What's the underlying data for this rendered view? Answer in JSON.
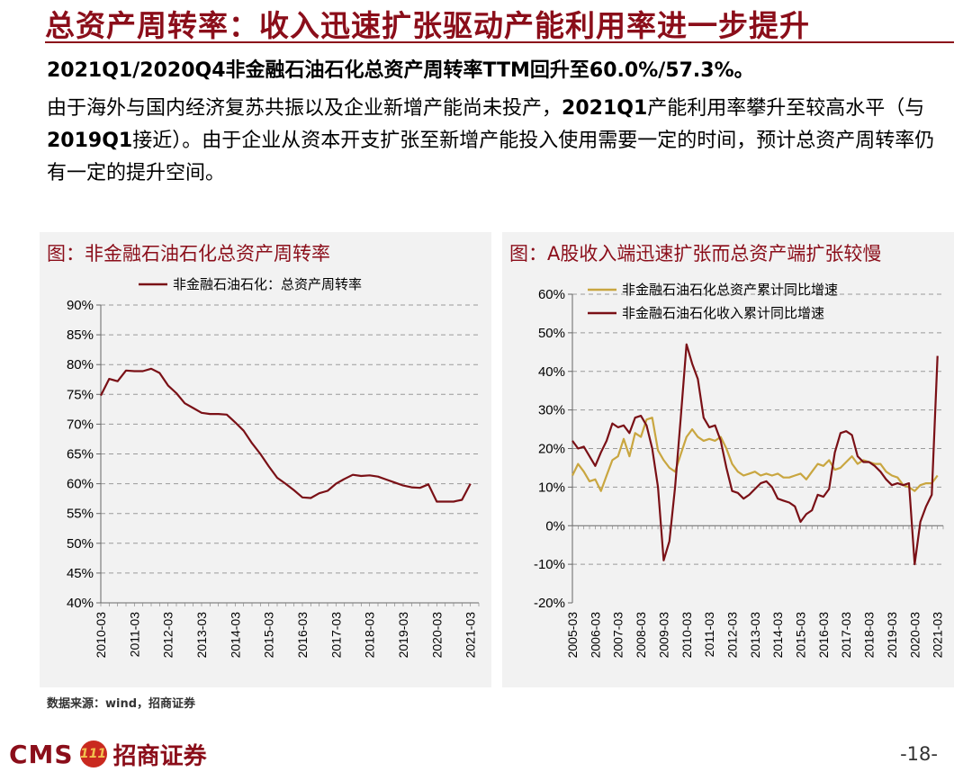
{
  "header": {
    "title": "总资产周转率：收入迅速扩张驱动产能利用率进一步提升",
    "headline": "2021Q1/2020Q4非金融石油石化总资产周转率TTM回升至60.0%/57.3%。"
  },
  "body": {
    "seg1": "由于海外与国内经济复苏共振以及企业新增产能尚未投产，",
    "seg2": "2021Q1",
    "seg3": "产能利用率攀升至较高水平（与",
    "seg4": "2019Q1",
    "seg5": "接近）。由于企业从资本开支扩张至新增产能投入使用需要一定的时间，预计总资产周转率仍有一定的提升空间。"
  },
  "left_panel": {
    "title": "图：非金融石油石化总资产周转率"
  },
  "right_panel": {
    "title": "图：A股收入端迅速扩张而总资产端扩张较慢"
  },
  "source": "数据来源：wind，招商证券",
  "footer": {
    "logo_text": "CMS",
    "logo_badge": "111",
    "logo_cn": "招商证券",
    "page": "-18-"
  },
  "colors": {
    "accent": "#8B0E1A",
    "series_gold": "#C9A640",
    "series_dark": "#7A1016"
  },
  "chart_data": [
    {
      "type": "line",
      "legend_position": "top-center",
      "ylim": [
        40,
        90
      ],
      "yticks": [
        "40%",
        "45%",
        "50%",
        "55%",
        "60%",
        "65%",
        "70%",
        "75%",
        "80%",
        "85%",
        "90%"
      ],
      "xlim": [
        2010.0,
        2021.25
      ],
      "xticks": [
        "2010-03",
        "2011-03",
        "2012-03",
        "2013-03",
        "2014-03",
        "2015-03",
        "2016-03",
        "2017-03",
        "2018-03",
        "2019-03",
        "2020-03",
        "2021-03"
      ],
      "grid": "horizontal dashed",
      "series": [
        {
          "name": "非金融石油石化：总资产周转率",
          "x": [
            2010.0,
            2010.25,
            2010.5,
            2010.75,
            2011.0,
            2011.25,
            2011.5,
            2011.75,
            2012.0,
            2012.25,
            2012.5,
            2012.75,
            2013.0,
            2013.25,
            2013.5,
            2013.75,
            2014.0,
            2014.25,
            2014.5,
            2014.75,
            2015.0,
            2015.25,
            2015.5,
            2015.75,
            2016.0,
            2016.25,
            2016.5,
            2016.75,
            2017.0,
            2017.25,
            2017.5,
            2017.75,
            2018.0,
            2018.25,
            2018.5,
            2018.75,
            2019.0,
            2019.25,
            2019.5,
            2019.75,
            2020.0,
            2020.25,
            2020.5,
            2020.75,
            2021.0
          ],
          "y": [
            74.8,
            77.6,
            77.2,
            79.0,
            78.9,
            78.9,
            79.3,
            78.6,
            76.5,
            75.2,
            73.5,
            72.7,
            71.9,
            71.7,
            71.7,
            71.6,
            70.3,
            68.9,
            66.8,
            65.0,
            62.9,
            61.0,
            60.0,
            58.9,
            57.7,
            57.6,
            58.4,
            58.8,
            60.0,
            60.8,
            61.5,
            61.3,
            61.4,
            61.2,
            60.7,
            60.2,
            59.7,
            59.4,
            59.3,
            59.9,
            57.0,
            57.0,
            57.0,
            57.3,
            60.0
          ]
        }
      ]
    },
    {
      "type": "line",
      "legend_position": "top-center",
      "ylim": [
        -20,
        60
      ],
      "yticks": [
        "-20%",
        "-10%",
        "0%",
        "10%",
        "20%",
        "30%",
        "40%",
        "50%",
        "60%"
      ],
      "xlim": [
        2005.0,
        2021.25
      ],
      "xticks": [
        "2005-03",
        "2006-03",
        "2007-03",
        "2008-03",
        "2009-03",
        "2010-03",
        "2011-03",
        "2012-03",
        "2013-03",
        "2014-03",
        "2015-03",
        "2016-03",
        "2017-03",
        "2018-03",
        "2019-03",
        "2020-03",
        "2021-03"
      ],
      "grid": "horizontal dashed",
      "series": [
        {
          "name": "非金融石油石化总资产累计同比增速",
          "x": [
            2005.0,
            2005.25,
            2005.5,
            2005.75,
            2006.0,
            2006.25,
            2006.5,
            2006.75,
            2007.0,
            2007.25,
            2007.5,
            2007.75,
            2008.0,
            2008.25,
            2008.5,
            2008.75,
            2009.0,
            2009.25,
            2009.5,
            2009.75,
            2010.0,
            2010.25,
            2010.5,
            2010.75,
            2011.0,
            2011.25,
            2011.5,
            2011.75,
            2012.0,
            2012.25,
            2012.5,
            2012.75,
            2013.0,
            2013.25,
            2013.5,
            2013.75,
            2014.0,
            2014.25,
            2014.5,
            2014.75,
            2015.0,
            2015.25,
            2015.5,
            2015.75,
            2016.0,
            2016.25,
            2016.5,
            2016.75,
            2017.0,
            2017.25,
            2017.5,
            2017.75,
            2018.0,
            2018.25,
            2018.5,
            2018.75,
            2019.0,
            2019.25,
            2019.5,
            2019.75,
            2020.0,
            2020.25,
            2020.5,
            2020.75,
            2021.0
          ],
          "y": [
            13.0,
            16.0,
            14.0,
            11.5,
            12.0,
            9.0,
            13.0,
            17.0,
            18.0,
            22.5,
            18.0,
            24.0,
            23.0,
            27.5,
            28.0,
            19.5,
            17.0,
            15.0,
            14.0,
            18.5,
            23.0,
            25.0,
            23.0,
            22.0,
            22.5,
            22.0,
            23.0,
            20.0,
            16.0,
            14.0,
            13.0,
            13.5,
            14.0,
            13.0,
            13.5,
            13.0,
            13.5,
            12.5,
            12.5,
            13.0,
            13.5,
            12.0,
            14.0,
            16.0,
            15.5,
            17.0,
            14.5,
            15.0,
            16.5,
            18.0,
            16.0,
            17.0,
            16.5,
            16.0,
            16.0,
            14.0,
            13.0,
            12.5,
            10.5,
            10.0,
            9.0,
            10.5,
            11.0,
            11.0,
            13.0
          ]
        },
        {
          "name": "非金融石油石化收入累计同比增速",
          "x": [
            2005.0,
            2005.25,
            2005.5,
            2005.75,
            2006.0,
            2006.25,
            2006.5,
            2006.75,
            2007.0,
            2007.25,
            2007.5,
            2007.75,
            2008.0,
            2008.25,
            2008.5,
            2008.75,
            2009.0,
            2009.25,
            2009.5,
            2009.75,
            2010.0,
            2010.25,
            2010.5,
            2010.75,
            2011.0,
            2011.25,
            2011.5,
            2011.75,
            2012.0,
            2012.25,
            2012.5,
            2012.75,
            2013.0,
            2013.25,
            2013.5,
            2013.75,
            2014.0,
            2014.25,
            2014.5,
            2014.75,
            2015.0,
            2015.25,
            2015.5,
            2015.75,
            2016.0,
            2016.25,
            2016.5,
            2016.75,
            2017.0,
            2017.25,
            2017.5,
            2017.75,
            2018.0,
            2018.25,
            2018.5,
            2018.75,
            2019.0,
            2019.25,
            2019.5,
            2019.75,
            2020.0,
            2020.25,
            2020.5,
            2020.75,
            2021.0
          ],
          "y": [
            22.0,
            20.0,
            20.5,
            18.0,
            15.5,
            19.0,
            22.0,
            26.5,
            25.5,
            26.0,
            24.0,
            28.0,
            28.5,
            26.0,
            20.0,
            10.0,
            -9.0,
            -4.0,
            10.0,
            28.0,
            47.0,
            42.0,
            38.0,
            28.0,
            25.5,
            26.0,
            22.0,
            15.0,
            9.0,
            8.5,
            7.0,
            8.0,
            9.5,
            11.0,
            11.5,
            10.0,
            7.0,
            6.5,
            6.0,
            5.0,
            1.0,
            3.0,
            4.0,
            8.0,
            7.5,
            9.5,
            19.0,
            24.0,
            24.5,
            23.5,
            18.0,
            16.5,
            16.5,
            15.5,
            14.0,
            12.0,
            10.5,
            11.0,
            10.5,
            11.0,
            -10.0,
            1.0,
            5.0,
            8.0,
            44.0
          ]
        }
      ]
    }
  ]
}
